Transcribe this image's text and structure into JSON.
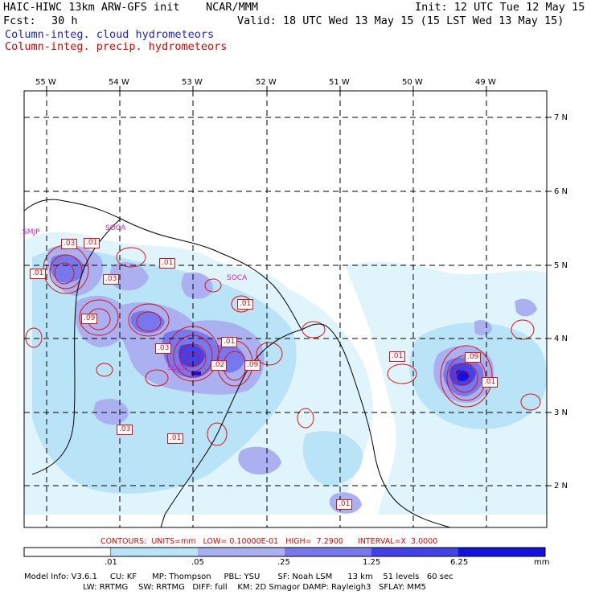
{
  "header": {
    "title_left": "HAIC-HIWC 13km ARW-GFS init    NCAR/MMM",
    "init": "Init: 12 UTC Tue 12 May 15",
    "fcst_label": "Fcst:",
    "fcst_value": "30 h",
    "valid": "Valid: 18 UTC Wed 13 May 15 (15 LST Wed 13 May 15)",
    "line_cloud": "Column-integ. cloud hydrometeors",
    "line_precip": "Column-integ. precip. hydrometeors"
  },
  "colors": {
    "cloud_text": "#2020d0",
    "precip_text": "#e00000",
    "contour": "#e01010",
    "shade_1": "#dff4fb",
    "shade_2": "#b9e3f7",
    "shade_3": "#aab0f0",
    "shade_4": "#7878ee",
    "shade_5": "#4242ea",
    "shade_6": "#1212e0",
    "station": "#cc22cc"
  },
  "map": {
    "lon_labels": [
      "55 W",
      "54 W",
      "53 W",
      "52 W",
      "51 W",
      "50 W",
      "49 W"
    ],
    "lat_labels": [
      "7 N",
      "6 N",
      "5 N",
      "4 N",
      "3 N",
      "2 N"
    ],
    "stations": [
      "SMJP",
      "SOCA",
      "SOCA",
      "SOCA"
    ],
    "contour_labels": [
      ".03",
      ".01",
      ".01",
      ".01",
      ".03",
      ".09",
      ".03",
      ".01",
      ".02",
      ".09",
      ".01",
      ".01",
      ".01",
      ".03",
      ".09",
      ".01",
      ".01"
    ]
  },
  "footer": {
    "contours_line": "CONTOURS:  UNITS=mm   LOW= 0.10000E-01   HIGH=  7.2900      INTERVAL=X  3.0000",
    "colorbar_ticks": [
      ".01",
      ".05",
      ".25",
      "1.25",
      "6.25"
    ],
    "colorbar_unit": "mm",
    "model_line1": "Model Info: V3.6.1     CU: KF      MP: Thompson     PBL: YSU       SF: Noah LSM      13 km    51 levels   60 sec",
    "model_line2": "                       LW: RRTMG    SW: RRTMG   DIFF: full    KM: 2D Smagor DAMP: Rayleigh3   SFLAY: MM5"
  }
}
